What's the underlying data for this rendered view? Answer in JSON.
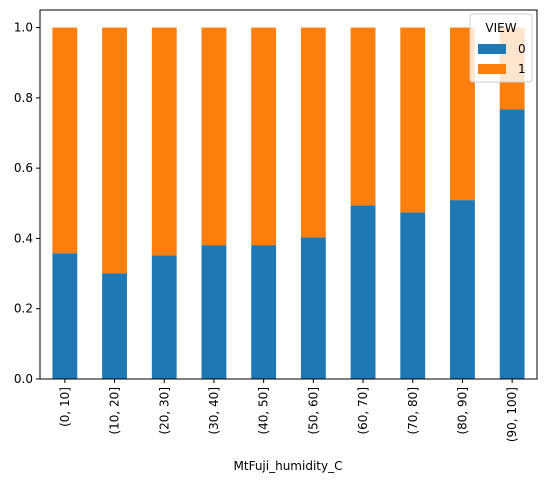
{
  "chart_data": {
    "type": "stacked_bar",
    "x_label": "MtFuji_humidity_C",
    "categories": [
      "(0, 10]",
      "(10, 20]",
      "(20, 30]",
      "(30, 40]",
      "(40, 50]",
      "(50, 60]",
      "(60, 70]",
      "(70, 80]",
      "(80, 90]",
      "(90, 100]"
    ],
    "series": [
      {
        "name": "0",
        "color": "#1f77b4",
        "values": [
          0.358,
          0.301,
          0.352,
          0.381,
          0.381,
          0.403,
          0.494,
          0.474,
          0.509,
          0.767
        ]
      },
      {
        "name": "1",
        "color": "#ff7f0e",
        "values": [
          0.642,
          0.699,
          0.648,
          0.619,
          0.619,
          0.597,
          0.506,
          0.526,
          0.491,
          0.233
        ]
      }
    ],
    "ylim": [
      0,
      1.05
    ],
    "yticks": [
      {
        "value": 0,
        "label": "0.0"
      },
      0.2,
      0.4,
      0.6,
      0.8,
      {
        "value": 1,
        "label": "1.0"
      }
    ],
    "legend": {
      "title": "VIEW",
      "position": "upper right"
    }
  }
}
